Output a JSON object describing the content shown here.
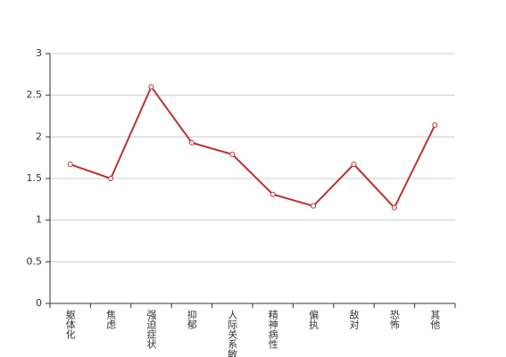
{
  "chart_data": {
    "type": "line",
    "categories": [
      "躯体化",
      "焦虑",
      "强迫症状",
      "抑郁",
      "人际关系敏感",
      "精神病性",
      "偏执",
      "敌对",
      "恐怖",
      "其他"
    ],
    "values": [
      1.67,
      1.5,
      2.6,
      1.93,
      1.79,
      1.31,
      1.17,
      1.67,
      1.15,
      2.14
    ],
    "color": "#b83232",
    "ylim": [
      0,
      3
    ],
    "yticks": [
      0,
      0.5,
      1,
      1.5,
      2,
      2.5,
      3
    ],
    "grid": true
  }
}
